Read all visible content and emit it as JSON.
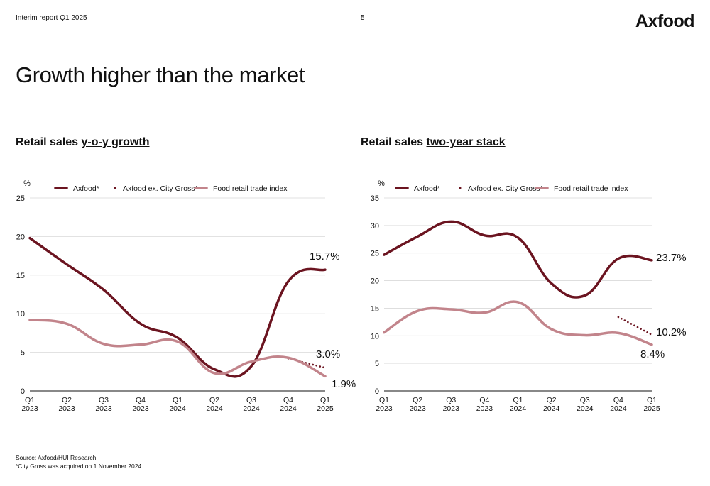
{
  "header": {
    "report_label": "Interim report Q1 2025",
    "page_number": "5",
    "logo_text": "Axfood"
  },
  "page_title": "Growth higher than the market",
  "colors": {
    "axfood": "#6b1420",
    "ex_city_gross": "#6b1420",
    "food_retail_index": "#c2848b",
    "grid": "#d9d9d9",
    "axis": "#111111"
  },
  "chart_data": [
    {
      "type": "line",
      "title_prefix": "Retail sales ",
      "title_underlined": "y-o-y growth",
      "ylabel": "%",
      "ylim": [
        0,
        25
      ],
      "yticks": [
        "0",
        "5",
        "10",
        "15",
        "20",
        "25"
      ],
      "categories": [
        "Q1 2023",
        "Q2 2023",
        "Q3 2023",
        "Q4 2023",
        "Q1 2024",
        "Q2 2024",
        "Q3 2024",
        "Q4 2024",
        "Q1 2025"
      ],
      "x_tick_lines": [
        [
          "Q1",
          "2023"
        ],
        [
          "Q2",
          "2023"
        ],
        [
          "Q3",
          "2023"
        ],
        [
          "Q4",
          "2023"
        ],
        [
          "Q1",
          "2024"
        ],
        [
          "Q2",
          "2024"
        ],
        [
          "Q3",
          "2024"
        ],
        [
          "Q4",
          "2024"
        ],
        [
          "Q1",
          "2025"
        ]
      ],
      "grid": true,
      "legend_position": "top",
      "series": [
        {
          "name": "Axfood*",
          "style": "solid",
          "values": [
            19.8,
            16.4,
            13.1,
            8.7,
            6.9,
            2.8,
            3.2,
            14.2,
            15.7
          ]
        },
        {
          "name": "Axfood ex. City Gross*",
          "style": "dotted",
          "values": [
            null,
            null,
            null,
            null,
            null,
            null,
            null,
            4.2,
            3.0
          ]
        },
        {
          "name": "Food retail trade index",
          "style": "solid",
          "values": [
            9.2,
            8.7,
            6.1,
            6.0,
            6.4,
            2.3,
            3.8,
            4.3,
            1.9
          ]
        }
      ],
      "end_labels": [
        "15.7%",
        "3.0%",
        "1.9%"
      ]
    },
    {
      "type": "line",
      "title_prefix": "Retail sales ",
      "title_underlined": "two-year stack",
      "ylabel": "%",
      "ylim": [
        0,
        35
      ],
      "yticks": [
        "0",
        "5",
        "10",
        "15",
        "20",
        "25",
        "30",
        "35"
      ],
      "categories": [
        "Q1 2023",
        "Q2 2023",
        "Q3 2023",
        "Q4 2023",
        "Q1 2024",
        "Q2 2024",
        "Q3 2024",
        "Q4 2024",
        "Q1 2025"
      ],
      "x_tick_lines": [
        [
          "Q1",
          "2023"
        ],
        [
          "Q2",
          "2023"
        ],
        [
          "Q3",
          "2023"
        ],
        [
          "Q4",
          "2023"
        ],
        [
          "Q1",
          "2024"
        ],
        [
          "Q2",
          "2024"
        ],
        [
          "Q3",
          "2024"
        ],
        [
          "Q4",
          "2024"
        ],
        [
          "Q1",
          "2025"
        ]
      ],
      "grid": true,
      "legend_position": "top",
      "series": [
        {
          "name": "Axfood*",
          "style": "solid",
          "values": [
            24.7,
            28.0,
            30.7,
            28.2,
            27.8,
            19.5,
            17.3,
            24.0,
            23.7
          ]
        },
        {
          "name": "Axfood ex. City Gross*",
          "style": "dotted",
          "values": [
            null,
            null,
            null,
            null,
            null,
            null,
            null,
            13.4,
            10.2
          ]
        },
        {
          "name": "Food retail trade index",
          "style": "solid",
          "values": [
            10.6,
            14.5,
            14.8,
            14.2,
            16.1,
            11.2,
            10.1,
            10.5,
            8.4
          ]
        }
      ],
      "end_labels": [
        "23.7%",
        "10.2%",
        "8.4%"
      ]
    }
  ],
  "footer": {
    "source": "Source: Axfood/HUI Research",
    "note": "*City Gross was acquired on 1 November 2024."
  }
}
